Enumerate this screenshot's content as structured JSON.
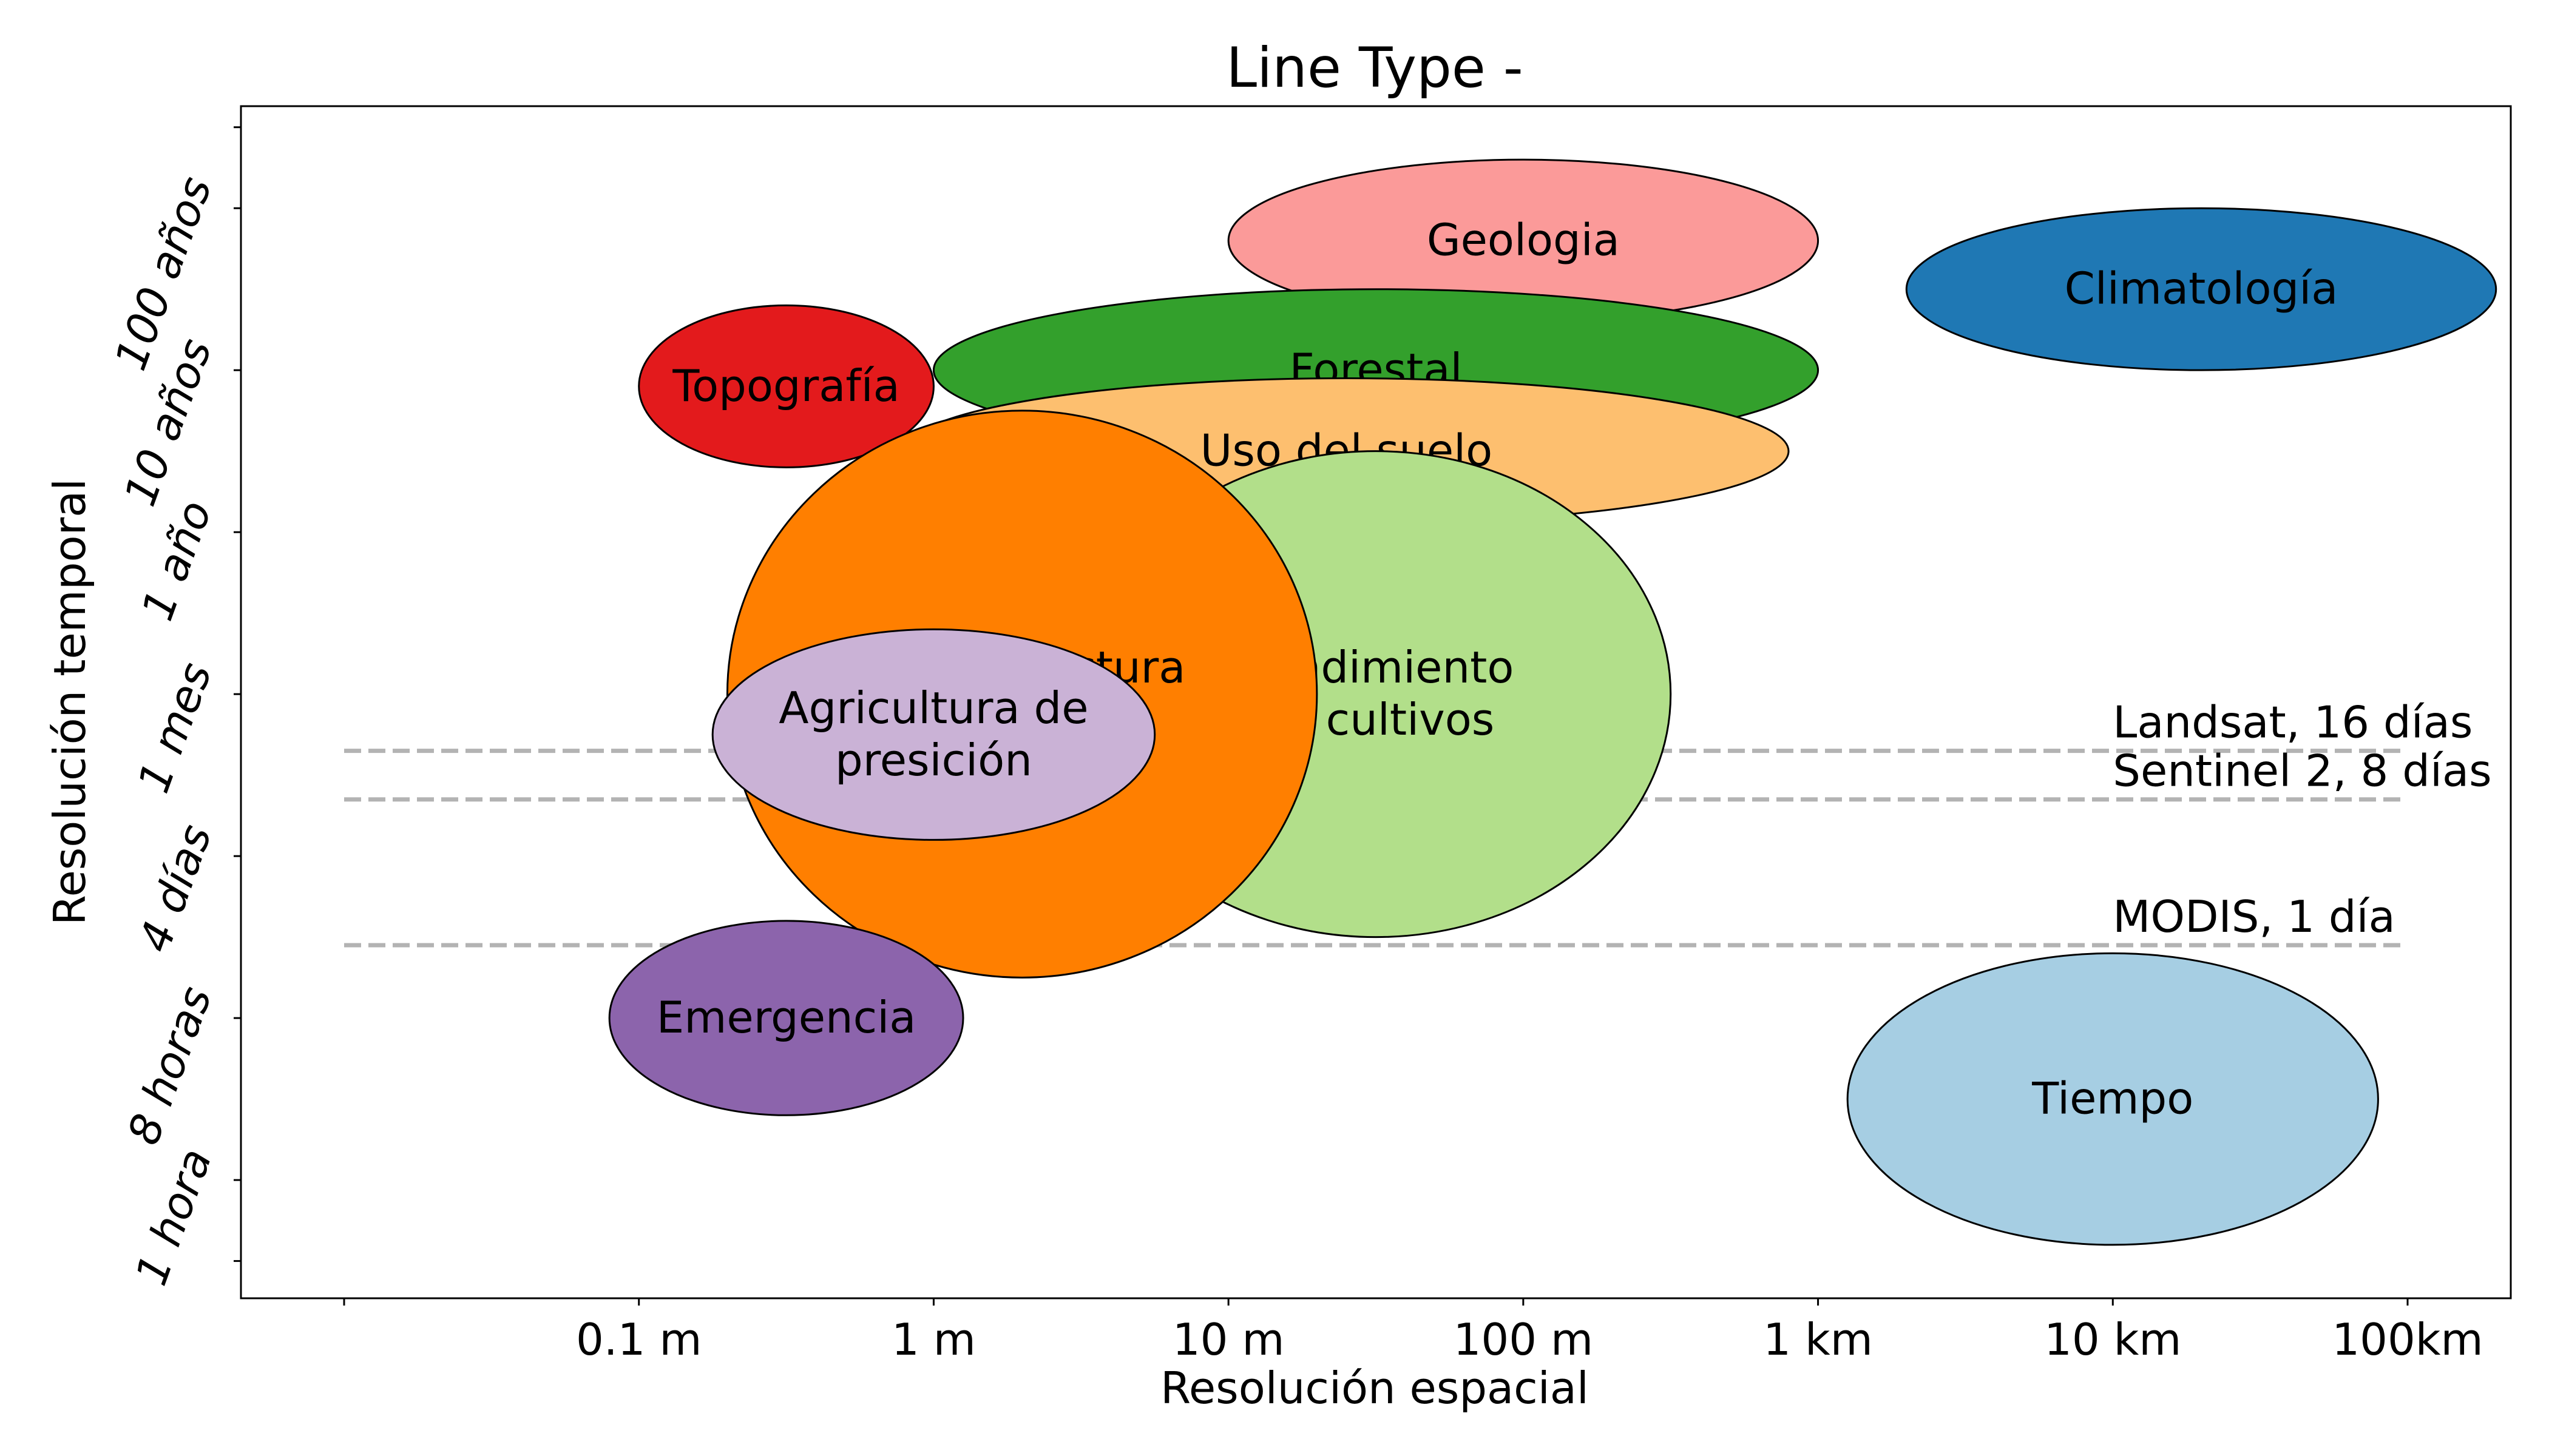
{
  "chart_data": {
    "type": "bubble",
    "title": "Line Type -",
    "xlabel": "Resolución espacial",
    "ylabel": "Resolución temporal",
    "x_ticks": [
      {
        "pos": -1,
        "label": ""
      },
      {
        "pos": 0,
        "label": "0.1 m"
      },
      {
        "pos": 1,
        "label": "1 m"
      },
      {
        "pos": 2,
        "label": "10 m"
      },
      {
        "pos": 3,
        "label": "100 m"
      },
      {
        "pos": 4,
        "label": "1 km"
      },
      {
        "pos": 5,
        "label": "10 km"
      },
      {
        "pos": 6,
        "label": "100km"
      },
      {
        "pos": 6.5,
        "label": ""
      }
    ],
    "y_ticks": [
      {
        "pos": 8.5,
        "label": ""
      },
      {
        "pos": 8,
        "label": "100 años"
      },
      {
        "pos": 7,
        "label": "10 años"
      },
      {
        "pos": 6,
        "label": "1 año"
      },
      {
        "pos": 5,
        "label": "1 mes"
      },
      {
        "pos": 4,
        "label": "4 días"
      },
      {
        "pos": 3,
        "label": "8 horas"
      },
      {
        "pos": 2,
        "label": "1 hora"
      },
      {
        "pos": 1.5,
        "label": ""
      }
    ],
    "xlim": [
      -1.35,
      6.35
    ],
    "ylim": [
      1.27,
      8.63
    ],
    "bubbles": [
      {
        "label": "Geologia",
        "cx": 3.0,
        "cy": 7.8,
        "rx": 1.0,
        "ry": 0.5,
        "color": "#fb9a99"
      },
      {
        "label": "Climatología",
        "cx": 5.3,
        "cy": 7.5,
        "rx": 1.0,
        "ry": 0.5,
        "color": "#1f78b4"
      },
      {
        "label": "Forestal",
        "cx": 2.5,
        "cy": 7.0,
        "rx": 1.5,
        "ry": 0.5,
        "color": "#33a02c"
      },
      {
        "label": "Topografía",
        "cx": 0.5,
        "cy": 6.9,
        "rx": 0.5,
        "ry": 0.5,
        "color": "#e31a1c"
      },
      {
        "label": "Uso del suelo",
        "cx": 2.4,
        "cy": 6.5,
        "rx": 1.5,
        "ry": 0.45,
        "color": "#fdbf6f"
      },
      {
        "label": "Rendimiento\nde cultivos",
        "cx": 2.5,
        "cy": 5.0,
        "rx": 1.0,
        "ry": 1.5,
        "color": "#b2df8a"
      },
      {
        "label": "Infraestructura\nTransporte",
        "cx": 1.3,
        "cy": 5.0,
        "rx": 1.0,
        "ry": 1.75,
        "color": "#ff7f00"
      },
      {
        "label": "Agricultura de\npresición",
        "cx": 1.0,
        "cy": 4.75,
        "rx": 0.75,
        "ry": 0.65,
        "color": "#cab2d6"
      },
      {
        "label": "Emergencia",
        "cx": 0.5,
        "cy": 3.0,
        "rx": 0.6,
        "ry": 0.6,
        "color": "#8c64ac"
      },
      {
        "label": "Tiempo",
        "cx": 5.0,
        "cy": 2.5,
        "rx": 0.9,
        "ry": 0.9,
        "color": "#a6cee3"
      }
    ],
    "reference_lines": [
      {
        "label": "Landsat, 16 días",
        "y": 4.65
      },
      {
        "label": "Sentinel 2, 8 días",
        "y": 4.35
      },
      {
        "label": "MODIS, 1 día",
        "y": 3.45
      }
    ],
    "reference_line_color": "#b3b3b3",
    "reference_line_range": [
      -1.0,
      6.0
    ],
    "reference_label_x": 5.0
  }
}
